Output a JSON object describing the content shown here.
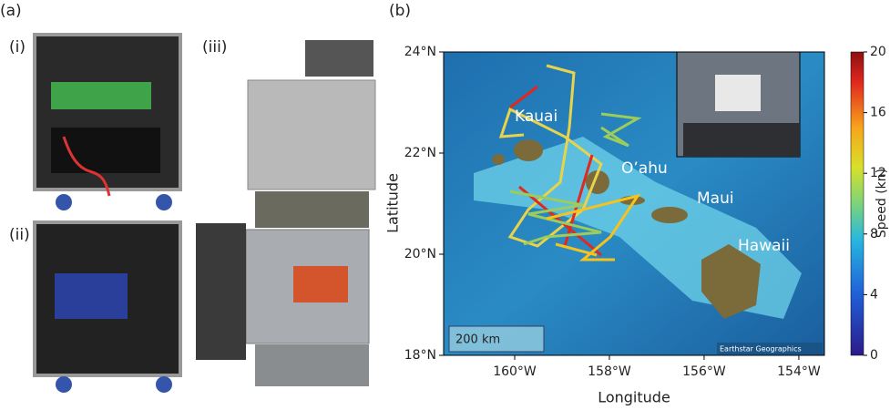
{
  "panel_a": {
    "label": "(a)",
    "sublabels": [
      "(i)",
      "(ii)",
      "(iii)"
    ]
  },
  "panel_b": {
    "label": "(b)",
    "xlabel": "Longitude",
    "ylabel": "Latitude",
    "xlim": [
      -161.5,
      -153.46
    ],
    "ylim": [
      18,
      24
    ],
    "xticks": [
      {
        "value": -160,
        "label": "160°W"
      },
      {
        "value": -158,
        "label": "158°W"
      },
      {
        "value": -156,
        "label": "156°W"
      },
      {
        "value": -154,
        "label": "154°W"
      }
    ],
    "yticks": [
      {
        "value": 18,
        "label": "18°N"
      },
      {
        "value": 20,
        "label": "20°N"
      },
      {
        "value": 22,
        "label": "22°N"
      },
      {
        "value": 24,
        "label": "24°N"
      }
    ],
    "islands": [
      "Kauai",
      "O’ahu",
      "Maui",
      "Hawaii"
    ],
    "scale_bar": "200 km",
    "attribution": "Earthstar Geographics",
    "colorbar": {
      "label": "Speed (kn)",
      "lim": [
        0,
        20
      ],
      "ticks": [
        0,
        4,
        8,
        12,
        16,
        20
      ]
    }
  }
}
